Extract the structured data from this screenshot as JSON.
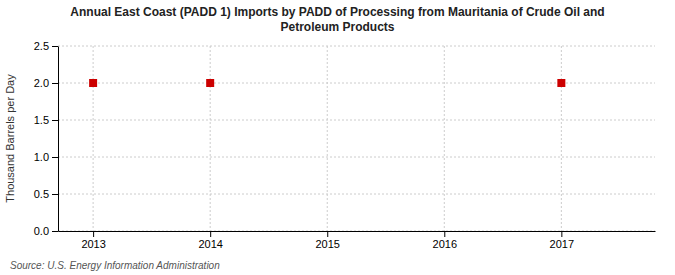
{
  "chart_data": {
    "type": "scatter",
    "title": "Annual East Coast (PADD 1) Imports by PADD of Processing from Mauritania of Crude Oil and\nPetroleum Products",
    "ylabel": "Thousand Barrels per Day",
    "source": "Source: U.S. Energy Information Administration",
    "x": [
      2013,
      2014,
      2017
    ],
    "values": [
      2.0,
      2.0,
      2.0
    ],
    "color": "#cc0000",
    "marker": "square",
    "xlim": [
      2012.7,
      2017.8
    ],
    "xticks": [
      2013,
      2014,
      2015,
      2016,
      2017
    ],
    "ylim": [
      0.0,
      2.5
    ],
    "yticks": [
      {
        "value": 0.0,
        "label": "0.0"
      },
      0.5,
      {
        "value": 1.0,
        "label": "1.0"
      },
      1.5,
      {
        "value": 2.0,
        "label": "2.0"
      },
      2.5
    ],
    "grid": true
  }
}
